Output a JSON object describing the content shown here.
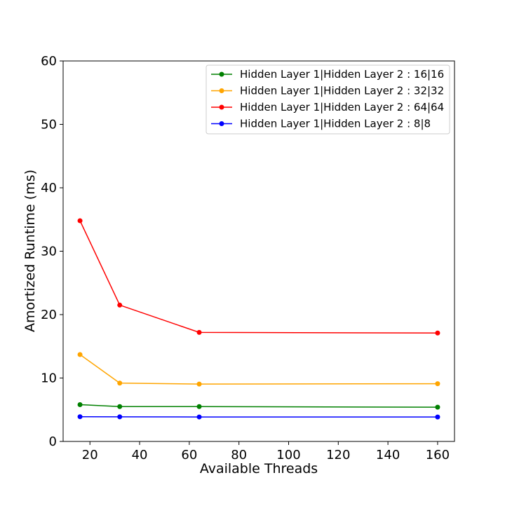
{
  "chart_data": {
    "type": "line",
    "title": "",
    "xlabel": "Available Threads",
    "ylabel": "Amortized Runtime (ms)",
    "xlim": [
      9.2,
      166.8
    ],
    "ylim": [
      0,
      60
    ],
    "xticks": [
      20,
      40,
      60,
      80,
      100,
      120,
      140,
      160
    ],
    "yticks": [
      0,
      10,
      20,
      30,
      40,
      50,
      60
    ],
    "grid": false,
    "legend_position": "top-right",
    "x": [
      16,
      32,
      64,
      160
    ],
    "series": [
      {
        "name": "Hidden Layer 1|Hidden Layer 2 : 16|16",
        "color": "#008000",
        "values": [
          5.8,
          5.5,
          5.5,
          5.4
        ]
      },
      {
        "name": "Hidden Layer 1|Hidden Layer 2 : 32|32",
        "color": "#ffa500",
        "values": [
          13.7,
          9.2,
          9.05,
          9.1
        ]
      },
      {
        "name": "Hidden Layer 1|Hidden Layer 2 : 64|64",
        "color": "#ff0000",
        "values": [
          34.8,
          21.5,
          17.2,
          17.1
        ]
      },
      {
        "name": "Hidden Layer 1|Hidden Layer 2 : 8|8",
        "color": "#0000ff",
        "values": [
          3.9,
          3.88,
          3.86,
          3.85
        ]
      }
    ]
  }
}
